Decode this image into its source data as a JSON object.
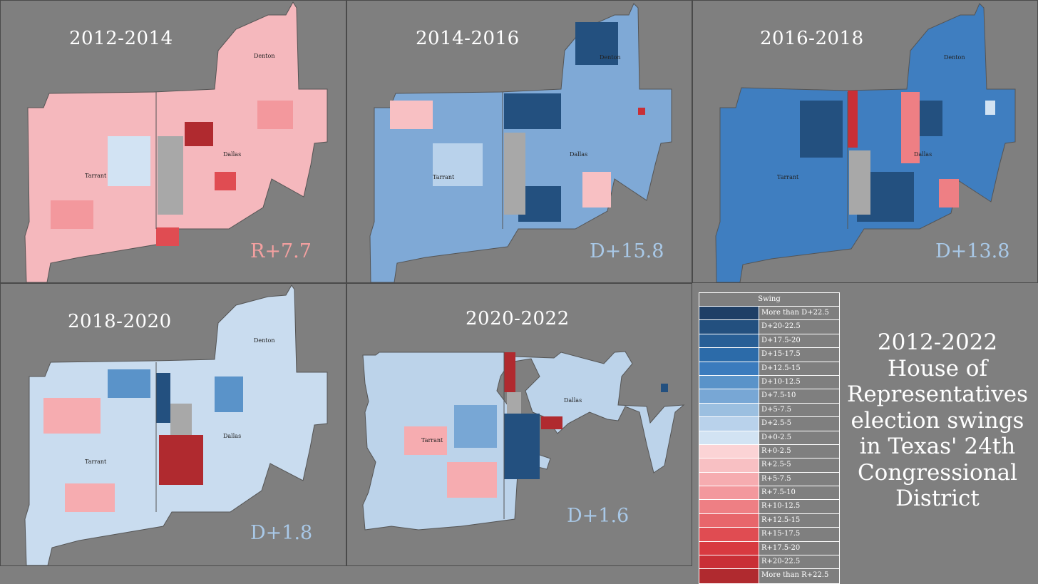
{
  "panels": [
    {
      "period": "2012-2014",
      "swing": "R+7.7",
      "swing_color": "#f4a0a0",
      "base": "#f5b8bd",
      "counties": {
        "denton": "Denton",
        "tarrant": "Tarrant",
        "dallas": "Dallas"
      }
    },
    {
      "period": "2014-2016",
      "swing": "D+15.8",
      "swing_color": "#a9c9e8",
      "base": "#7fa9d6",
      "counties": {
        "denton": "Denton",
        "tarrant": "Tarrant",
        "dallas": "Dallas"
      }
    },
    {
      "period": "2016-2018",
      "swing": "D+13.8",
      "swing_color": "#a9c9e8",
      "base": "#3f7ec0",
      "counties": {
        "denton": "Denton",
        "tarrant": "Tarrant",
        "dallas": "Dallas"
      }
    },
    {
      "period": "2018-2020",
      "swing": "D+1.8",
      "swing_color": "#a9c9e8",
      "base": "#c9dcef",
      "counties": {
        "denton": "Denton",
        "tarrant": "Tarrant",
        "dallas": "Dallas"
      }
    },
    {
      "period": "2020-2022",
      "swing": "D+1.6",
      "swing_color": "#a9c9e8",
      "base": "#bcd3ea",
      "counties": {
        "tarrant": "Tarrant",
        "dallas": "Dallas"
      }
    }
  ],
  "legend": {
    "title": "Swing",
    "items": [
      {
        "label": "More than D+22.5",
        "color": "#1f3f66"
      },
      {
        "label": "D+20-22.5",
        "color": "#23507f"
      },
      {
        "label": "D+17.5-20",
        "color": "#285f96"
      },
      {
        "label": "D+15-17.5",
        "color": "#2c6ba9"
      },
      {
        "label": "D+12.5-15",
        "color": "#3b7bbd"
      },
      {
        "label": "D+10-12.5",
        "color": "#5a93c9"
      },
      {
        "label": "D+7.5-10",
        "color": "#78a7d5"
      },
      {
        "label": "D+5-7.5",
        "color": "#9bbfe0"
      },
      {
        "label": "D+2.5-5",
        "color": "#b9d2eb"
      },
      {
        "label": "D+0-2.5",
        "color": "#d2e3f3"
      },
      {
        "label": "R+0-2.5",
        "color": "#fbd3d5"
      },
      {
        "label": "R+2.5-5",
        "color": "#f8c0c3"
      },
      {
        "label": "R+5-7.5",
        "color": "#f6acb0"
      },
      {
        "label": "R+7.5-10",
        "color": "#f3989d"
      },
      {
        "label": "R+10-12.5",
        "color": "#ee7f84"
      },
      {
        "label": "R+12.5-15",
        "color": "#e8666b"
      },
      {
        "label": "R+15-17.5",
        "color": "#e04c52"
      },
      {
        "label": "R+17.5-20",
        "color": "#d83a40"
      },
      {
        "label": "R+20-22.5",
        "color": "#c92f36"
      },
      {
        "label": "More than R+22.5",
        "color": "#b02a2f"
      }
    ]
  },
  "main_title": {
    "line1": "2012-2022",
    "line2": "House of",
    "line3": "Representatives",
    "line4": "election swings",
    "line5": "in Texas' 24th",
    "line6": "Congressional",
    "line7": "District"
  }
}
